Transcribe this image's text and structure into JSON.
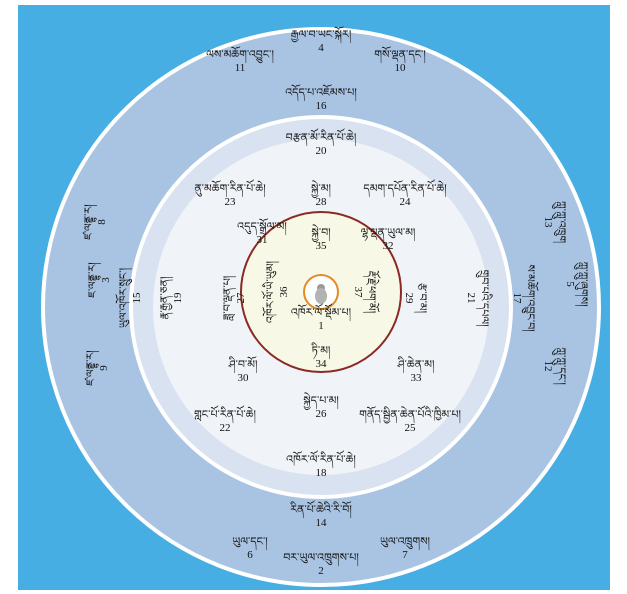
{
  "colors": {
    "background": "#46aee3",
    "outer_ring": "#a9c3e2",
    "middle_ring": "#d8e2f0",
    "inner_ring": "#f0f3f7",
    "core": "#f8f8e6",
    "ring_border": "#ffffff",
    "core_border": "#8a2a23",
    "center_circle": "#e48a25"
  },
  "center_icon": "deity-figure-icon",
  "labels": [
    {
      "id": "1",
      "text": "འཁོར་ལོ་སྡོམ་པ།",
      "num": "1",
      "deg": 0
    },
    {
      "id": "2",
      "text": "བར་ཡུལ་འཁྲུགས་པ།",
      "num": "2",
      "deg": 0
    },
    {
      "id": "3",
      "text": "ཇ་ལནྡྷ་ར།",
      "num": "3",
      "deg": -90
    },
    {
      "id": "4",
      "text": "རྒྱལ་བ་ཡང་སྐོར།",
      "num": "4",
      "deg": 0
    },
    {
      "id": "5",
      "text": "ཀླུ་ཀླུ་ཞུགས།",
      "num": "5",
      "deg": 90
    },
    {
      "id": "6",
      "text": "ཡུལ་དང་།",
      "num": "6",
      "deg": 0
    },
    {
      "id": "7",
      "text": "ཡུལ་འཁྲུགས།",
      "num": "7",
      "deg": 0
    },
    {
      "id": "8",
      "text": "ཛ་ལནྡྷ་ར།",
      "num": "8",
      "deg": -90
    },
    {
      "id": "9",
      "text": "ཛ་ལནྡྷ་ར།",
      "num": "9",
      "deg": -90
    },
    {
      "id": "10",
      "text": "གསོ་ལྡན་དང་།",
      "num": "10",
      "deg": 0
    },
    {
      "id": "11",
      "text": "ལས་མཆོག་འབྱུང་།",
      "num": "11",
      "deg": 0
    },
    {
      "id": "12",
      "text": "ཀླུ་ཀླུ་དང་།",
      "num": "12",
      "deg": 90
    },
    {
      "id": "13",
      "text": "ཀླུ་ཀླུ་འཁྲུག",
      "num": "13",
      "deg": 90
    },
    {
      "id": "14",
      "text": "རིན་པོ་ཆེའི་རི་བོ།",
      "num": "14",
      "deg": 0
    },
    {
      "id": "15",
      "text": "ཡུལ་འཁོར་སྲུང་།",
      "num": "15",
      "deg": -90
    },
    {
      "id": "16",
      "text": "འདོད་པ་འཇོམས་པ།",
      "num": "16",
      "deg": 0
    },
    {
      "id": "17",
      "text": "ས་མཆོག་འབྱུང་བ།",
      "num": "17",
      "deg": 90
    },
    {
      "id": "18",
      "text": "འཁོར་ལོ་རིན་པོ་ཆེ།",
      "num": "18",
      "deg": 0
    },
    {
      "id": "19",
      "text": "རྣ་རྒྱན་ཅན།",
      "num": "19",
      "deg": -90
    },
    {
      "id": "20",
      "text": "བརྩན་མོ་རིན་པོ་ཆེ།",
      "num": "20",
      "deg": 0
    },
    {
      "id": "21",
      "text": "གྲུབ་པའི་དཔལ།",
      "num": "21",
      "deg": 90
    },
    {
      "id": "22",
      "text": "གླང་པོ་རིན་པོ་ཆེ།",
      "num": "22",
      "deg": 0
    },
    {
      "id": "23",
      "text": "ནུ་མཆོག་རིན་པོ་ཆེ།",
      "num": "23",
      "deg": 0
    },
    {
      "id": "24",
      "text": "དམག་དཔོན་རིན་པོ་ཆེ།",
      "num": "24",
      "deg": 0
    },
    {
      "id": "25",
      "text": "གནོད་སྦྱིན་ཆེན་པོའི་ཁྱིམ་པ།",
      "num": "25",
      "deg": 0
    },
    {
      "id": "26",
      "text": "སྐྱེད་པ་མ།",
      "num": "26",
      "deg": 0
    },
    {
      "id": "27",
      "text": "ཟླ་བ་ལྡན་པ།",
      "num": "27",
      "deg": -90
    },
    {
      "id": "28",
      "text": "སྐྱེ་མ།",
      "num": "28",
      "deg": 0
    },
    {
      "id": "29",
      "text": "རྩ་བ་མ།",
      "num": "29",
      "deg": 90
    },
    {
      "id": "30",
      "text": "ཤི་བ་མོ།",
      "num": "30",
      "deg": 0
    },
    {
      "id": "31",
      "text": "འདུད་སྒྲོལ་མ།",
      "num": "31",
      "deg": 0
    },
    {
      "id": "32",
      "text": "ལྷ་ལྡན་ཡུལ་མ།",
      "num": "32",
      "deg": 0
    },
    {
      "id": "33",
      "text": "ཤི་ཆེན་མ།",
      "num": "33",
      "deg": 0
    },
    {
      "id": "34",
      "text": "ཏི་མ།",
      "num": "34",
      "deg": 0
    },
    {
      "id": "35",
      "text": "སྐྱེ་བ།",
      "num": "35",
      "deg": 0
    },
    {
      "id": "36",
      "text": "འཁོར་ལོ་ཡི་ཡུམ།",
      "num": "36",
      "deg": -90
    },
    {
      "id": "37",
      "text": "རྡོ་རྗེ་ཕག་མོ།",
      "num": "37",
      "deg": 90
    }
  ]
}
